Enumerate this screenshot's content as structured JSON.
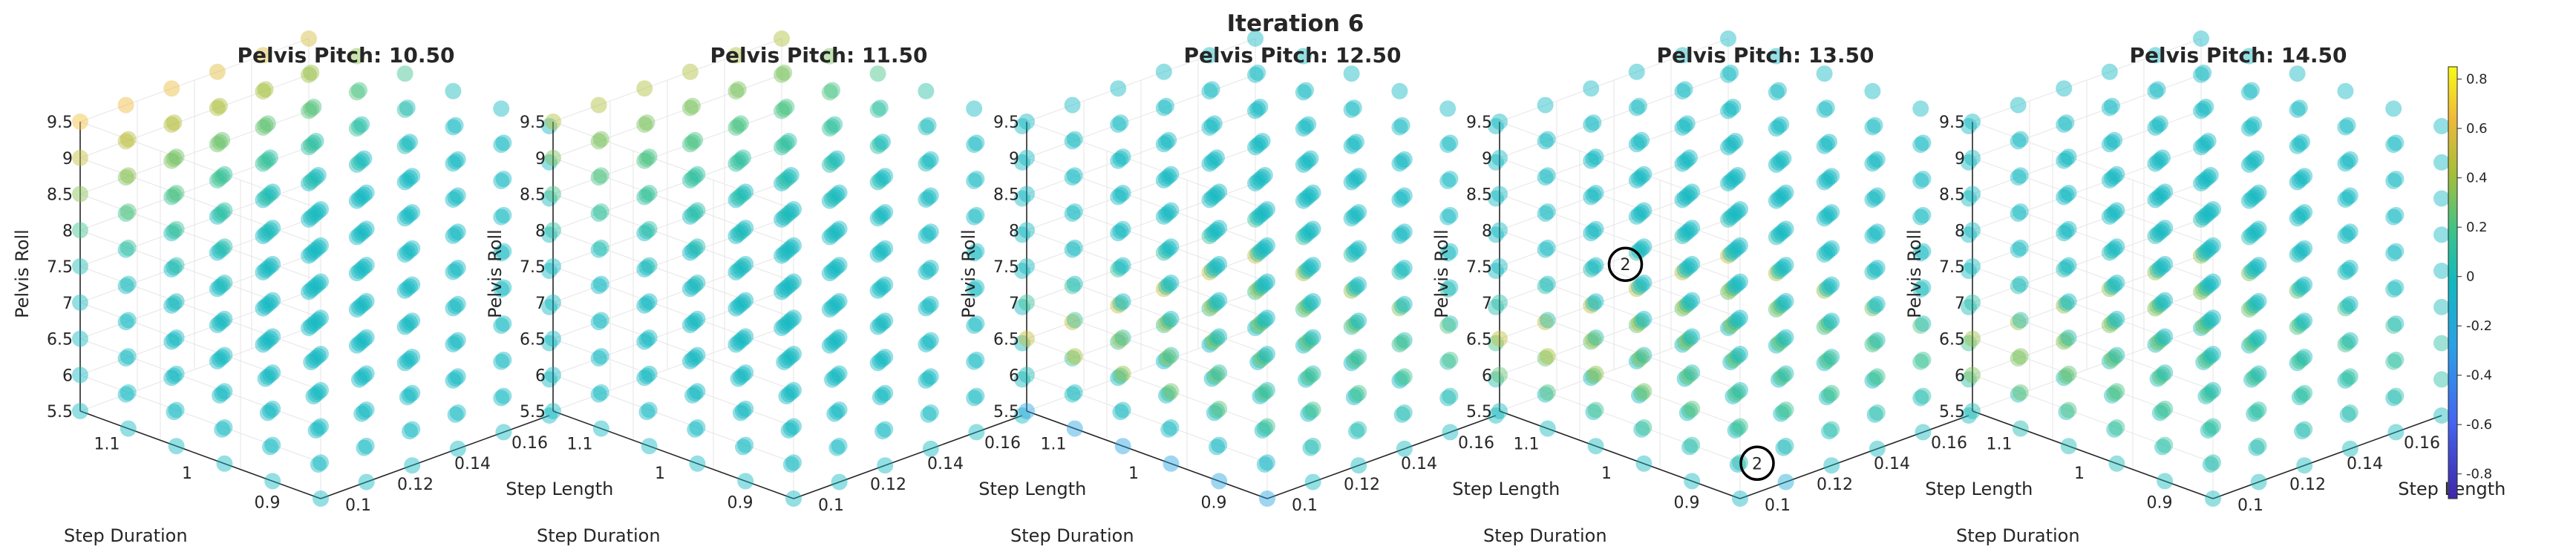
{
  "figure": {
    "title": "Iteration 6"
  },
  "chart_data": [
    {
      "type": "scatter3d",
      "title": "Pelvis Pitch: 10.50",
      "xlabel": "Step Length",
      "ylabel": "Step Duration",
      "zlabel": "Pelvis Roll",
      "xticks": [
        "0.1",
        "0.12",
        "0.14",
        "0.16"
      ],
      "yticks": [
        "0.9",
        "1",
        "1.1"
      ],
      "zticks": [
        "5.5",
        "6",
        "6.5",
        "7",
        "7.5",
        "8",
        "8.5",
        "9",
        "9.5"
      ],
      "xlim": [
        0.09,
        0.17
      ],
      "ylim": [
        0.85,
        1.15
      ],
      "zlim": [
        5.5,
        9.5
      ],
      "value_field": "high toward large Pelvis Roll and large Step Duration (yellow ~0.6 near roll 8-9.5)",
      "markers": []
    },
    {
      "type": "scatter3d",
      "title": "Pelvis Pitch: 11.50",
      "xlabel": "Step Length",
      "ylabel": "Step Duration",
      "zlabel": "Pelvis Roll",
      "xticks": [
        "0.1",
        "0.12",
        "0.14",
        "0.16"
      ],
      "yticks": [
        "0.9",
        "1",
        "1.1"
      ],
      "zticks": [
        "5.5",
        "6",
        "6.5",
        "7",
        "7.5",
        "8",
        "8.5",
        "9",
        "9.5"
      ],
      "xlim": [
        0.09,
        0.17
      ],
      "ylim": [
        0.85,
        1.15
      ],
      "zlim": [
        5.5,
        9.5
      ],
      "value_field": "moderate values (~0.4) at high Pelvis Roll, mostly ~0",
      "markers": []
    },
    {
      "type": "scatter3d",
      "title": "Pelvis Pitch: 12.50",
      "xlabel": "Step Length",
      "ylabel": "Step Duration",
      "zlabel": "Pelvis Roll",
      "xticks": [
        "0.1",
        "0.12",
        "0.14",
        "0.16"
      ],
      "yticks": [
        "0.9",
        "1",
        "1.1"
      ],
      "zticks": [
        "5.5",
        "6",
        "6.5",
        "7",
        "7.5",
        "8",
        "8.5",
        "9",
        "9.5"
      ],
      "xlim": [
        0.09,
        0.17
      ],
      "ylim": [
        0.85,
        1.15
      ],
      "zlim": [
        5.5,
        9.5
      ],
      "value_field": "band of higher values (~0.5) near Pelvis Roll 6-7, small negatives near Step Length 0.1",
      "markers": []
    },
    {
      "type": "scatter3d",
      "title": "Pelvis Pitch: 13.50",
      "xlabel": "Step Length",
      "ylabel": "Step Duration",
      "zlabel": "Pelvis Roll",
      "xticks": [
        "0.1",
        "0.12",
        "0.14",
        "0.16"
      ],
      "yticks": [
        "0.9",
        "1",
        "1.1"
      ],
      "zticks": [
        "5.5",
        "6",
        "6.5",
        "7",
        "7.5",
        "8",
        "8.5",
        "9",
        "9.5"
      ],
      "xlim": [
        0.09,
        0.17
      ],
      "ylim": [
        0.85,
        1.15
      ],
      "zlim": [
        5.5,
        9.5
      ],
      "value_field": "higher values (~0.5) near Pelvis Roll 6-6.5, negative (~-0.4) near Step Length 0.1",
      "markers": [
        {
          "label": "2",
          "x": 0.12,
          "y": 1.1,
          "z": 7.3
        },
        {
          "label": "2",
          "x": 0.11,
          "y": 0.9,
          "z": 5.5
        }
      ]
    },
    {
      "type": "scatter3d",
      "title": "Pelvis Pitch: 14.50",
      "xlabel": "Step Length",
      "ylabel": "Step Duration",
      "zlabel": "Pelvis Roll",
      "xticks": [
        "0.1",
        "0.12",
        "0.14",
        "0.16"
      ],
      "yticks": [
        "0.9",
        "1",
        "1.1"
      ],
      "zticks": [
        "5.5",
        "6",
        "6.5",
        "7",
        "7.5",
        "8",
        "8.5",
        "9",
        "9.5"
      ],
      "xlim": [
        0.09,
        0.17
      ],
      "ylim": [
        0.85,
        1.15
      ],
      "zlim": [
        5.5,
        9.5
      ],
      "value_field": "mild values (~0.3-0.5) near Pelvis Roll 6-6.5, rest ~0",
      "markers": []
    }
  ],
  "colorbar": {
    "ticks": [
      "0.8",
      "0.6",
      "0.4",
      "0.2",
      "0",
      "-0.2",
      "-0.4",
      "-0.6",
      "-0.8"
    ],
    "range": [
      -0.9,
      0.85
    ]
  }
}
